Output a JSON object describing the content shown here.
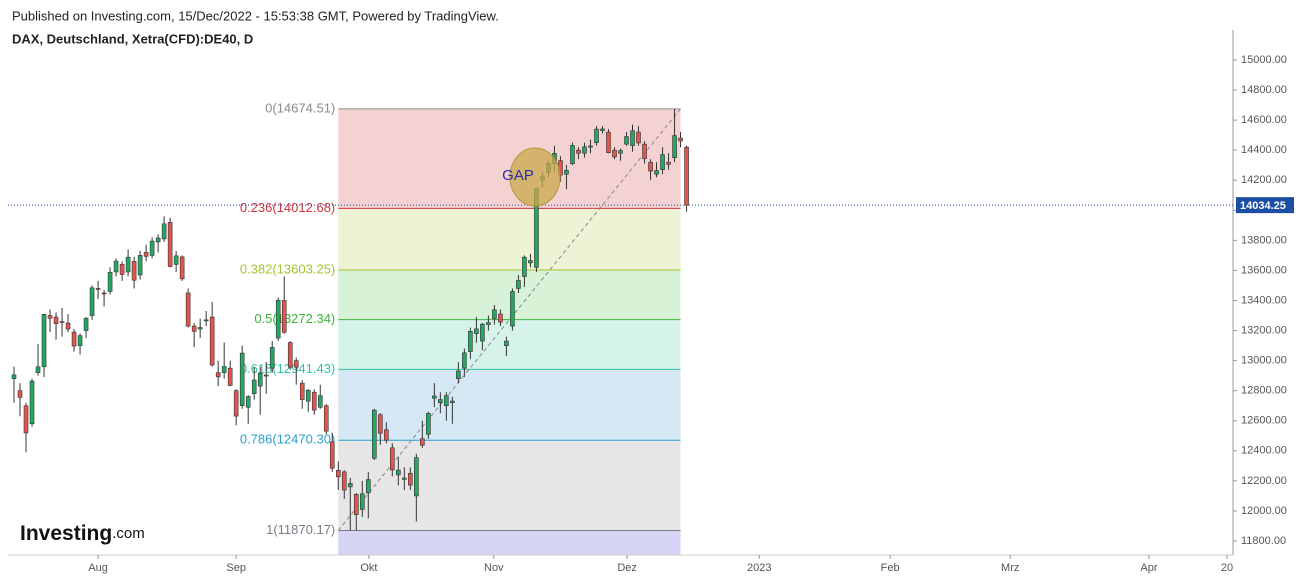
{
  "header": {
    "published": "Published on Investing.com, 15/Dec/2022 - 15:53:38 GMT, Powered by TradingView.",
    "symbol": "DAX, Deutschland, Xetra(CFD):DE40, D"
  },
  "logo": {
    "name": "Investing",
    "suffix": ".com"
  },
  "chart_data": {
    "type": "candlestick",
    "up_color": "#22a862",
    "down_color": "#e5534b",
    "x": [
      1,
      2,
      3,
      4,
      5,
      6,
      7,
      8,
      9,
      10,
      11,
      12,
      13,
      14,
      15,
      16,
      17,
      18,
      19,
      20,
      21,
      22,
      23,
      24,
      25,
      26,
      27,
      28,
      29,
      30,
      31,
      32,
      33,
      34,
      35,
      36,
      37,
      38,
      39,
      40,
      41,
      42,
      43,
      44,
      45,
      46,
      47,
      48,
      49,
      50,
      51,
      52,
      53,
      54,
      55,
      56,
      57,
      58,
      59,
      60,
      61,
      62,
      63,
      64,
      65,
      66,
      67,
      68,
      69,
      70,
      71,
      72,
      73,
      74,
      75,
      76,
      77,
      78,
      79,
      80,
      81,
      82,
      83,
      84,
      85,
      86,
      87,
      88,
      89,
      90,
      91,
      92,
      93,
      94,
      95,
      96,
      97,
      98,
      99,
      100,
      101,
      102,
      103,
      104,
      105,
      106,
      107,
      108,
      109,
      110,
      111,
      112,
      113
    ],
    "open": [
      12880,
      12800,
      12700,
      12580,
      12920,
      12960,
      13300,
      13290,
      13260,
      13250,
      13190,
      13100,
      13200,
      13300,
      13480,
      13450,
      13460,
      13590,
      13640,
      13590,
      13660,
      13570,
      13720,
      13700,
      13790,
      13810,
      13920,
      13640,
      13690,
      13450,
      13230,
      13210,
      13270,
      13290,
      12920,
      12920,
      12950,
      12800,
      12700,
      12690,
      12780,
      12830,
      12900,
      12950,
      13150,
      13400,
      13120,
      13000,
      12850,
      12730,
      12790,
      12690,
      12700,
      12460,
      12270,
      12260,
      12160,
      12110,
      12010,
      12120,
      12350,
      12640,
      12540,
      12420,
      12240,
      12210,
      12250,
      12100,
      12480,
      12510,
      12750,
      12720,
      12700,
      12720,
      12880,
      12950,
      13060,
      13180,
      13130,
      13240,
      13280,
      13310,
      13100,
      13230,
      13480,
      13560,
      13650,
      13620,
      14200,
      14250,
      14310,
      14330,
      14240,
      14310,
      14400,
      14380,
      14420,
      14450,
      14530,
      14520,
      14400,
      14380,
      14440,
      14430,
      14520,
      14440,
      14320,
      14240,
      14270,
      14320,
      14350,
      14480,
      14420
    ],
    "high": [
      12960,
      12850,
      12720,
      12880,
      13110,
      13310,
      13340,
      13320,
      13350,
      13310,
      13210,
      13180,
      13290,
      13500,
      13530,
      13470,
      13620,
      13680,
      13660,
      13740,
      13690,
      13730,
      13770,
      13820,
      13840,
      13960,
      13950,
      13730,
      13700,
      13480,
      13250,
      13280,
      13330,
      13390,
      13000,
      13120,
      13000,
      12810,
      13100,
      12770,
      12960,
      12960,
      12990,
      13130,
      13420,
      13560,
      13130,
      13020,
      12870,
      12810,
      12810,
      12840,
      12710,
      12520,
      12330,
      12270,
      12220,
      12120,
      12200,
      12260,
      12680,
      12650,
      12590,
      12450,
      12360,
      12290,
      12290,
      12380,
      12600,
      12660,
      12850,
      12790,
      12790,
      12760,
      12990,
      13080,
      13220,
      13290,
      13250,
      13300,
      13370,
      13340,
      13160,
      13480,
      13570,
      13700,
      13710,
      14150,
      14250,
      14330,
      14430,
      14360,
      14300,
      14450,
      14420,
      14450,
      14470,
      14560,
      14560,
      14540,
      14420,
      14410,
      14520,
      14570,
      14560,
      14460,
      14340,
      14320,
      14420,
      14380,
      14674.51,
      14520,
      14430
    ],
    "low": [
      12720,
      12630,
      12390,
      12560,
      12900,
      12890,
      13190,
      13140,
      13160,
      13190,
      13060,
      13040,
      13150,
      13270,
      13410,
      13360,
      13440,
      13560,
      13530,
      13560,
      13480,
      13540,
      13660,
      13680,
      13720,
      13790,
      13620,
      13590,
      13530,
      13220,
      13090,
      13150,
      13230,
      12960,
      12830,
      12880,
      12830,
      12570,
      12680,
      12580,
      12740,
      12640,
      12780,
      12920,
      13130,
      13180,
      12940,
      12840,
      12680,
      12660,
      12640,
      12680,
      12510,
      12260,
      12140,
      12080,
      11870.17,
      11870.17,
      11960,
      11950,
      12340,
      12440,
      12450,
      12230,
      12170,
      12140,
      12140,
      11930,
      12420,
      12480,
      12690,
      12650,
      12600,
      12580,
      12850,
      12890,
      13010,
      13120,
      13070,
      13200,
      13240,
      13230,
      13030,
      13200,
      13450,
      13490,
      13620,
      13590,
      14150,
      14220,
      14250,
      14190,
      14140,
      14300,
      14340,
      14350,
      14380,
      14430,
      14510,
      14380,
      14340,
      14330,
      14430,
      14390,
      14430,
      14310,
      14200,
      14220,
      14240,
      14270,
      14320,
      14420,
      13990
    ],
    "close": [
      12905,
      12756,
      12519,
      12864,
      12959,
      13308,
      13282,
      13246,
      13254,
      13210,
      13097,
      13166,
      13282,
      13484,
      13479,
      13449,
      13587,
      13662,
      13573,
      13688,
      13535,
      13700,
      13694,
      13795,
      13816,
      13910,
      13626,
      13697,
      13544,
      13230,
      13195,
      13220,
      13271,
      12971,
      12892,
      12961,
      12835,
      12631,
      13050,
      12761,
      12871,
      12916,
      12904,
      13088,
      13402,
      13188,
      12956,
      12956,
      12741,
      12803,
      12671,
      12767,
      12531,
      12284,
      12227,
      12139,
      12183,
      11976,
      12114,
      12209,
      12671,
      12517,
      12471,
      12273,
      12272,
      12219,
      12172,
      12355,
      12438,
      12649,
      12765,
      12741,
      12767,
      12731,
      12931,
      13052,
      13195,
      13211,
      13243,
      13253,
      13338,
      13256,
      13130,
      13460,
      13533,
      13688,
      13666,
      14146,
      14224,
      14313,
      14379,
      14234,
      14266,
      14431,
      14380,
      14422,
      14428,
      14540,
      14541,
      14383,
      14355,
      14397,
      14490,
      14529,
      14448,
      14343,
      14261,
      14264,
      14370,
      14306,
      14497,
      14461,
      14034.25
    ],
    "xlim": [
      0,
      204
    ],
    "xticks": [
      {
        "value": 15,
        "label": "Aug"
      },
      {
        "value": 38,
        "label": "Sep"
      },
      {
        "value": 60.1,
        "label": "Okt"
      },
      {
        "value": 80.9,
        "label": "Nov"
      },
      {
        "value": 103.1,
        "label": "Dez"
      },
      {
        "value": 125.1,
        "label": "2023"
      },
      {
        "value": 146.9,
        "label": "Feb"
      },
      {
        "value": 166.9,
        "label": "Mrz"
      },
      {
        "value": 190,
        "label": "Apr"
      },
      {
        "value": 203,
        "label": "20"
      }
    ],
    "ylim": [
      11707,
      15053
    ],
    "yticks": [
      {
        "value": 11800,
        "label": "11800.00"
      },
      {
        "value": 12000,
        "label": "12000.00"
      },
      {
        "value": 12200,
        "label": "12200.00"
      },
      {
        "value": 12400,
        "label": "12400.00"
      },
      {
        "value": 12600,
        "label": "12600.00"
      },
      {
        "value": 12800,
        "label": "12800.00"
      },
      {
        "value": 13000,
        "label": "13000.00"
      },
      {
        "value": 13200,
        "label": "13200.00"
      },
      {
        "value": 13400,
        "label": "13400.00"
      },
      {
        "value": 13600,
        "label": "13600.00"
      },
      {
        "value": 13800,
        "label": "13800.00"
      },
      {
        "value": 14000,
        "label": "14000.00"
      },
      {
        "value": 14200,
        "label": "14200.00"
      },
      {
        "value": 14400,
        "label": "14400.00"
      },
      {
        "value": 14600,
        "label": "14600.00"
      },
      {
        "value": 14800,
        "label": "14800.00"
      },
      {
        "value": 15000,
        "label": "15000.00"
      }
    ],
    "last_price": 14034.25,
    "last_price_color": "#1c4fa3",
    "fibonacci": {
      "x": [
        55,
        112
      ],
      "levels": [
        {
          "label": "0(14674.51)",
          "value": 14674.51,
          "color": "#8a8a8a",
          "fill": "#f5d2d2"
        },
        {
          "label": "0.236(14012.68)",
          "value": 14012.68,
          "color": "#d0343c",
          "fill": "#eef3d6"
        },
        {
          "label": "0.382(13603.25)",
          "value": 13603.25,
          "color": "#a2c530",
          "fill": "#d8f2d8"
        },
        {
          "label": "0.5(13272.34)",
          "value": 13272.34,
          "color": "#3cb43c",
          "fill": "#d5f3ea"
        },
        {
          "label": "0.618(12941.43)",
          "value": 12941.43,
          "color": "#2ec4a0",
          "fill": "#d5e8f4"
        },
        {
          "label": "0.786(12470.30)",
          "value": 12470.3,
          "color": "#2a9fd0",
          "fill": "#e6e6e6"
        },
        {
          "label": "1(11870.17)",
          "value": 11870.17,
          "color": "#787b86",
          "fill": "#d6d4f4"
        }
      ]
    },
    "annotations": [
      {
        "text": "GAP"
      }
    ]
  }
}
